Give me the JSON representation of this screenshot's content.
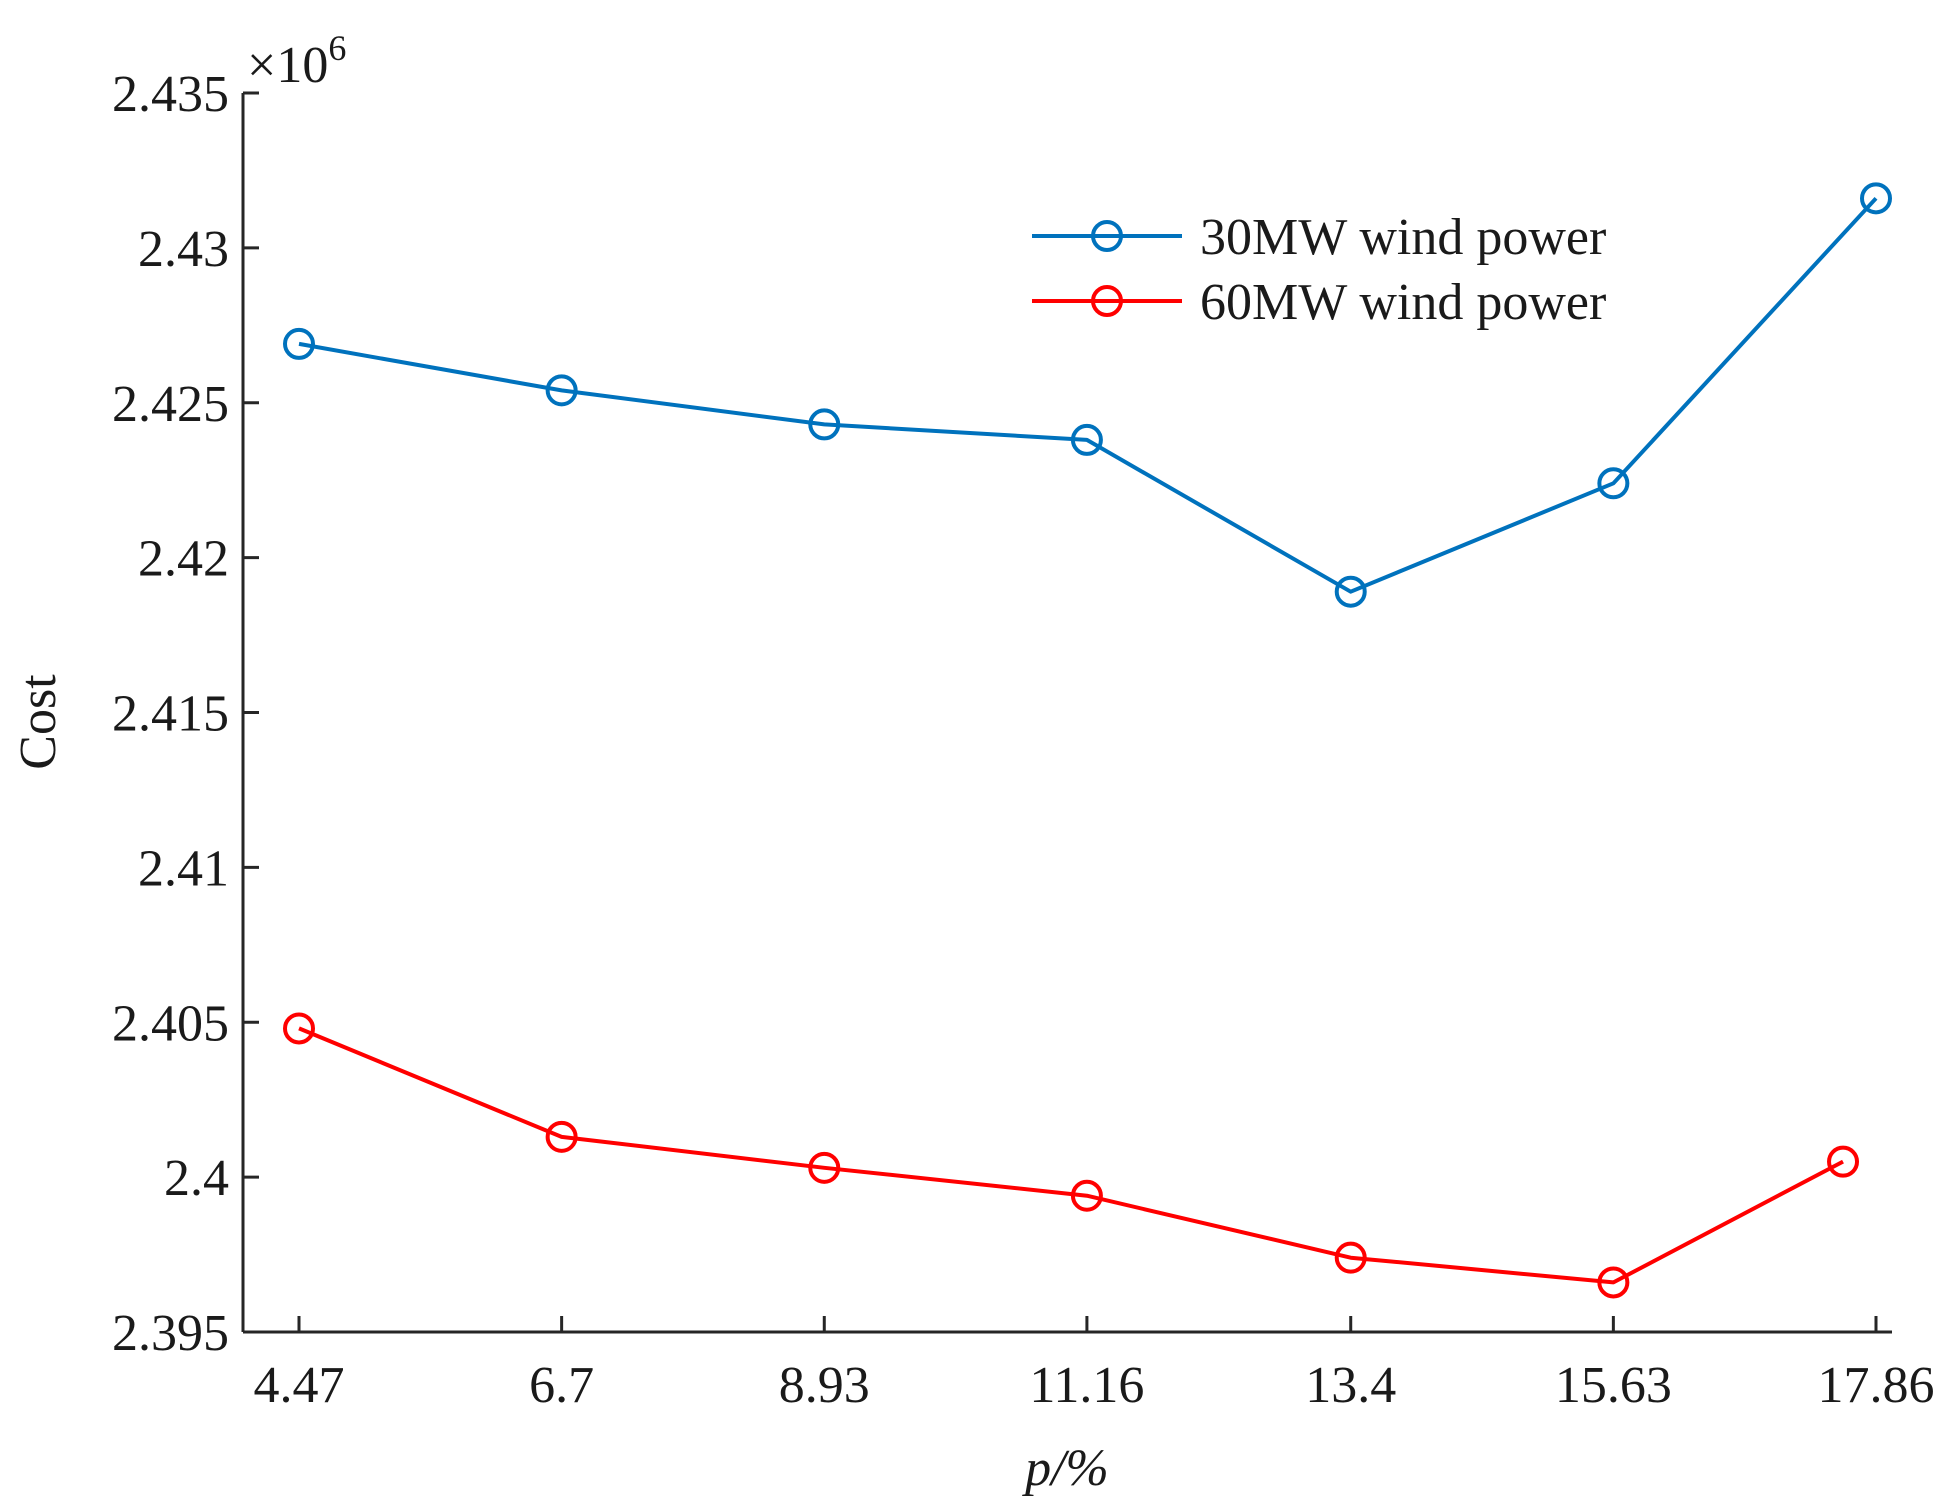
{
  "chart_data": {
    "type": "line",
    "x": [
      4.47,
      6.7,
      8.93,
      11.16,
      13.4,
      15.63,
      17.86
    ],
    "x_tick_labels": [
      "4.47",
      "6.7",
      "8.93",
      "11.16",
      "13.4",
      "15.63",
      "17.86"
    ],
    "xlabel": "p/%",
    "ylabel": "Cost",
    "ylim": [
      2.395,
      2.435
    ],
    "y_ticks": [
      2.395,
      2.4,
      2.405,
      2.41,
      2.415,
      2.42,
      2.425,
      2.43,
      2.435
    ],
    "y_tick_labels": [
      "2.395",
      "2.4",
      "2.405",
      "2.41",
      "2.415",
      "2.42",
      "2.425",
      "2.43",
      "2.435"
    ],
    "y_exponent_label": "×10",
    "y_exponent_power": "6",
    "legend_position": "top-right",
    "series": [
      {
        "name": "30MW wind power",
        "color": "#0072bd",
        "marker": "circle",
        "points": [
          [
            4.47,
            2.4269
          ],
          [
            6.7,
            2.4254
          ],
          [
            8.93,
            2.4243
          ],
          [
            11.16,
            2.4238
          ],
          [
            13.4,
            2.4189
          ],
          [
            15.63,
            2.4224
          ],
          [
            17.86,
            2.4316
          ]
        ]
      },
      {
        "name": "60MW wind power",
        "color": "#ff0000",
        "marker": "circle",
        "points": [
          [
            4.47,
            2.4048
          ],
          [
            6.7,
            2.4013
          ],
          [
            8.93,
            2.4003
          ],
          [
            11.16,
            2.3994
          ],
          [
            13.4,
            2.3974
          ],
          [
            15.63,
            2.3966
          ],
          [
            17.58,
            2.4005
          ]
        ]
      }
    ]
  }
}
